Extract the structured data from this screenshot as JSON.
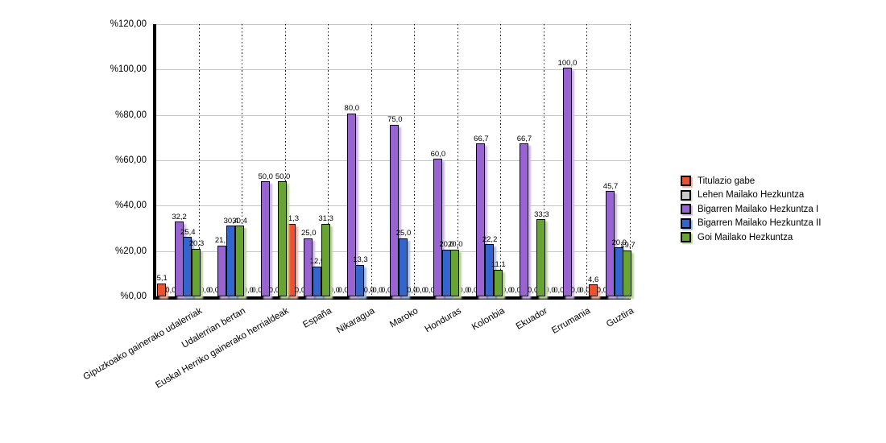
{
  "chart_data": {
    "type": "bar",
    "title": "",
    "xlabel": "",
    "ylabel": "",
    "ylim": [
      0,
      120
    ],
    "grid": "horizontal-solid-gray, vertical-dotted-black-between-categories",
    "legend_position": "right",
    "y_ticks": [
      {
        "value": 120,
        "label": "%120,00"
      },
      {
        "value": 100,
        "label": "%100,00"
      },
      {
        "value": 80,
        "label": "%80,00"
      },
      {
        "value": 60,
        "label": "%60,00"
      },
      {
        "value": 40,
        "label": "%40,00"
      },
      {
        "value": 20,
        "label": "%20,00"
      },
      {
        "value": 0,
        "label": "%0,00"
      }
    ],
    "categories": [
      "Gipuzkoako gainerako udalerriak",
      "Udalerrian bertan",
      "Euskal Herriko gainerako herrialdeak",
      "España",
      "Nikaragua",
      "Maroko",
      "Honduras",
      "Kolonbia",
      "Ekuador",
      "Errumania",
      "Guztira"
    ],
    "series": [
      {
        "name": "Titulazio gabe",
        "color": "#f0512d",
        "shadow": "#f6ab97",
        "values": [
          5.1,
          0.0,
          0.0,
          31.3,
          0.0,
          0.0,
          0.0,
          0.0,
          0.0,
          0.0,
          4.6
        ],
        "labels": [
          "5,1",
          "0,0",
          "0,0",
          "31,3",
          "0,0",
          "0,0",
          "0,0",
          "0,0",
          "0,0",
          "0,0",
          "4,6"
        ]
      },
      {
        "name": "Lehen Mailako Hezkuntza",
        "color": "#c9c9c9",
        "shadow": "#e3e3e3",
        "values": [
          0.0,
          0.0,
          0.0,
          0.0,
          0.0,
          0.0,
          0.0,
          0.0,
          0.0,
          0.0,
          0.0
        ],
        "labels": [
          "0,0",
          "0,0",
          "0,0",
          "0,0",
          "0,0",
          "0,0",
          "0,0",
          "0,0",
          "0,0",
          "0,0",
          "0,0"
        ]
      },
      {
        "name": "Bigarren Mailako Hezkuntza I",
        "color": "#9a63d2",
        "shadow": "#cdb2ec",
        "values": [
          32.2,
          21.7,
          50.0,
          25.0,
          80.0,
          75.0,
          60.0,
          66.7,
          66.7,
          100.0,
          45.7
        ],
        "labels": [
          "32,2",
          "21,7",
          "50,0",
          "25,0",
          "80,0",
          "75,0",
          "60,0",
          "66,7",
          "66,7",
          "100,0",
          "45,7"
        ]
      },
      {
        "name": "Bigarren Mailako Hezkuntza II",
        "color": "#3365cf",
        "shadow": "#9fb9ea",
        "values": [
          25.4,
          30.4,
          0.0,
          12.5,
          13.3,
          25.0,
          20.0,
          22.2,
          0.0,
          0.0,
          20.9
        ],
        "labels": [
          "25,4",
          "30,4",
          "0,0",
          "12,5",
          "13,3",
          "25,0",
          "20,0",
          "22,2",
          "0,0",
          "0,0",
          "20,9"
        ]
      },
      {
        "name": "Goi Mailako Hezkuntza",
        "color": "#68a432",
        "shadow": "#b9d69b",
        "values": [
          20.3,
          30.4,
          50.0,
          31.3,
          0.0,
          0.0,
          20.0,
          11.1,
          33.3,
          0.0,
          19.7
        ],
        "labels": [
          "20,3",
          "30,4",
          "50,0",
          "31,3",
          "0,0",
          "0,0",
          "20,0",
          "11,1",
          "33,3",
          "0,0",
          "19,7"
        ]
      }
    ]
  }
}
